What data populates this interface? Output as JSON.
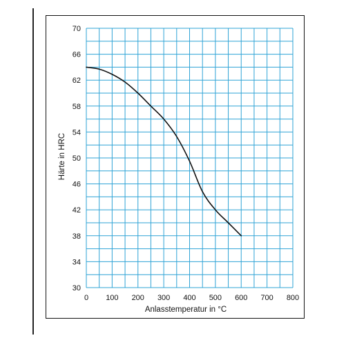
{
  "chart_data": {
    "type": "line",
    "xlabel": "Anlasstemperatur in °C",
    "ylabel": "Härte in HRC",
    "xlim": [
      0,
      800
    ],
    "ylim": [
      30,
      70
    ],
    "x_ticks": [
      0,
      100,
      200,
      300,
      400,
      500,
      600,
      700,
      800
    ],
    "y_ticks": [
      30,
      34,
      38,
      42,
      46,
      50,
      54,
      58,
      62,
      66,
      70
    ],
    "x_minor_step": 50,
    "y_minor_step": 2,
    "grid": true,
    "grid_color": "#2ea3d6",
    "line_color": "#111111",
    "series": [
      {
        "x": [
          0,
          50,
          100,
          150,
          200,
          250,
          300,
          350,
          400,
          450,
          500,
          550,
          600
        ],
        "y": [
          64,
          63.7,
          62.9,
          61.7,
          60.0,
          58.0,
          56.0,
          53.3,
          49.5,
          44.8,
          42.0,
          40.0,
          38.0
        ]
      }
    ]
  }
}
